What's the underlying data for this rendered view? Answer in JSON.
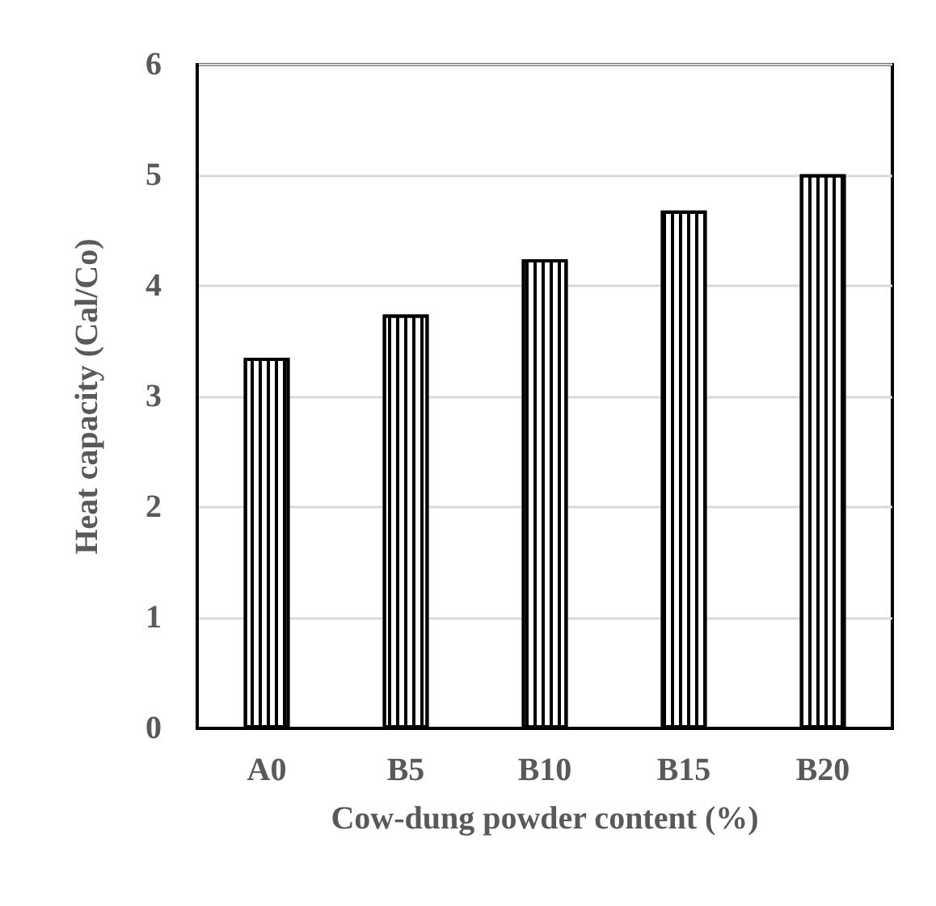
{
  "chart_data": {
    "type": "bar",
    "xlabel": "Cow-dung powder content (%)",
    "ylabel": "Heat capacity (Cal/Co)",
    "categories": [
      "A0",
      "B5",
      "B10",
      "B15",
      "B20"
    ],
    "values": [
      3.35,
      3.74,
      4.24,
      4.68,
      5.01
    ],
    "color": "#000000",
    "ylim": [
      0,
      6
    ],
    "yticks": [
      0,
      1,
      2,
      3,
      4,
      5,
      6
    ],
    "grid": "y"
  }
}
